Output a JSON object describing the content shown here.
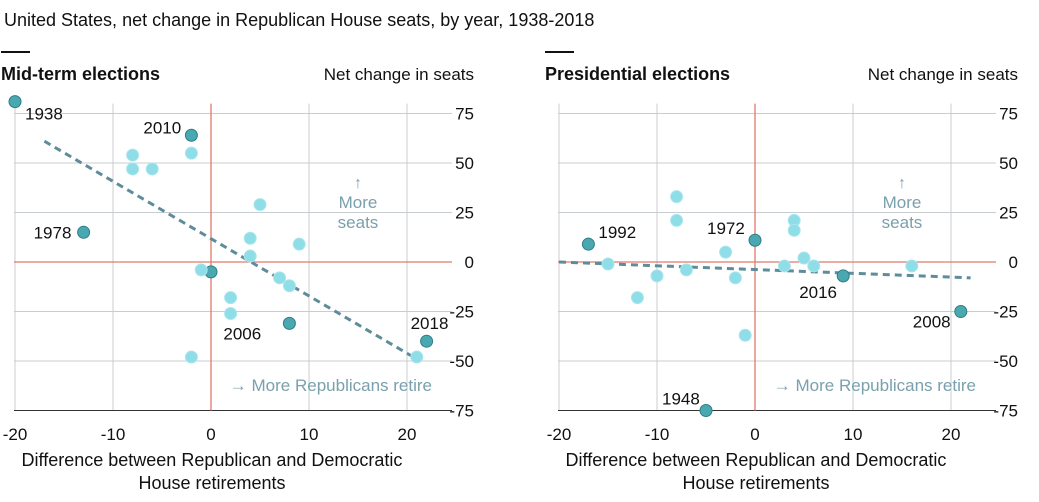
{
  "title": "United States, net change in Republican House seats, by year, 1938-2018",
  "colors": {
    "dot_light": "#8fdde7",
    "dot_dark": "#4aa8b0",
    "trend": "#5f8c9a",
    "zero_line": "#e07b6a",
    "grid": "#c8cdd2",
    "annotation": "#7aa0ae"
  },
  "chart_data": [
    {
      "type": "scatter",
      "title": "Mid-term elections",
      "ylabel": "Net change in seats",
      "xlabel": "Difference between Republican and Democratic House retirements",
      "xlim": [
        -20,
        24
      ],
      "ylim": [
        -75,
        80
      ],
      "xticks": [
        -20,
        -10,
        0,
        10,
        20
      ],
      "yticks": [
        75,
        50,
        25,
        0,
        -25,
        -50,
        -75
      ],
      "points": [
        {
          "x": -20,
          "y": 81,
          "label": "1938",
          "highlight": true
        },
        {
          "x": -13,
          "y": 15,
          "label": "1978",
          "highlight": true
        },
        {
          "x": -2,
          "y": 64,
          "label": "2010",
          "highlight": true
        },
        {
          "x": 0,
          "y": -5,
          "label": "",
          "highlight": true
        },
        {
          "x": 8,
          "y": -31,
          "label": "2006",
          "highlight": true
        },
        {
          "x": 22,
          "y": -40,
          "label": "2018",
          "highlight": true
        },
        {
          "x": -8,
          "y": 54
        },
        {
          "x": -8,
          "y": 47
        },
        {
          "x": -6,
          "y": 47
        },
        {
          "x": -2,
          "y": 55
        },
        {
          "x": -1,
          "y": -4
        },
        {
          "x": 2,
          "y": -18
        },
        {
          "x": 2,
          "y": -26
        },
        {
          "x": 4,
          "y": 12
        },
        {
          "x": 4,
          "y": 3
        },
        {
          "x": 5,
          "y": 29
        },
        {
          "x": 7,
          "y": -8
        },
        {
          "x": 8,
          "y": -12
        },
        {
          "x": 9,
          "y": 9
        },
        {
          "x": -2,
          "y": -48
        },
        {
          "x": 21,
          "y": -48
        }
      ],
      "trend": {
        "x1": -17,
        "y1": 61,
        "x2": 21,
        "y2": -49
      },
      "annotations": {
        "more_seats": [
          "More",
          "seats"
        ],
        "more_retire": "More Republicans retire"
      }
    },
    {
      "type": "scatter",
      "title": "Presidential elections",
      "ylabel": "Net change in seats",
      "xlabel": "Difference between Republican and Democratic House retirements",
      "xlim": [
        -20,
        24
      ],
      "ylim": [
        -75,
        80
      ],
      "xticks": [
        -20,
        -10,
        0,
        10,
        20
      ],
      "yticks": [
        75,
        50,
        25,
        0,
        -25,
        -50,
        -75
      ],
      "points": [
        {
          "x": -17,
          "y": 9,
          "label": "1992",
          "highlight": true
        },
        {
          "x": 0,
          "y": 11,
          "label": "1972",
          "highlight": true
        },
        {
          "x": 9,
          "y": -7,
          "label": "2016",
          "highlight": true
        },
        {
          "x": 21,
          "y": -25,
          "label": "2008",
          "highlight": true
        },
        {
          "x": -5,
          "y": -75,
          "label": "1948",
          "highlight": true
        },
        {
          "x": -8,
          "y": 33
        },
        {
          "x": -8,
          "y": 21
        },
        {
          "x": -15,
          "y": -1
        },
        {
          "x": -12,
          "y": -18
        },
        {
          "x": -10,
          "y": -7
        },
        {
          "x": -7,
          "y": -4
        },
        {
          "x": -3,
          "y": 5
        },
        {
          "x": -2,
          "y": -8
        },
        {
          "x": -1,
          "y": -37
        },
        {
          "x": 3,
          "y": -2
        },
        {
          "x": 4,
          "y": 21
        },
        {
          "x": 4,
          "y": 16
        },
        {
          "x": 5,
          "y": 2
        },
        {
          "x": 6,
          "y": -2
        },
        {
          "x": 16,
          "y": -2
        }
      ],
      "trend": {
        "x1": -20,
        "y1": 0,
        "x2": 22,
        "y2": -8
      },
      "annotations": {
        "more_seats": [
          "More",
          "seats"
        ],
        "more_retire": "More Republicans retire"
      }
    }
  ]
}
